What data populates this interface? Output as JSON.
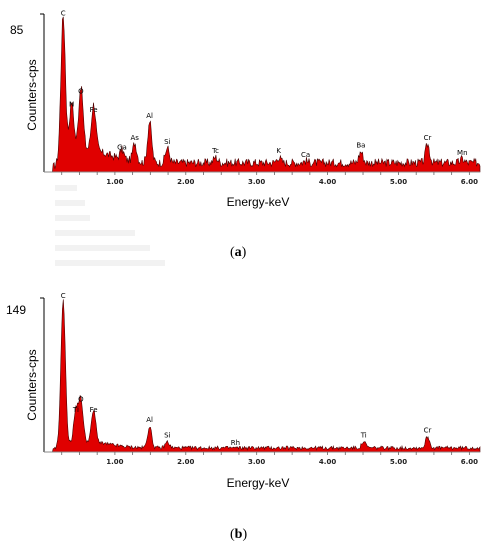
{
  "colors": {
    "spectrum_fill": "#e00000",
    "spectrum_stroke": "#4a0000",
    "axis": "#000000"
  },
  "chart_data": [
    {
      "type": "area",
      "caption": "a",
      "xlabel": "Energy-keV",
      "ylabel": "Counters-cps",
      "ymax_label": "85",
      "xlim": [
        0,
        6.15
      ],
      "ylim": [
        0,
        85
      ],
      "xticks": [
        "1.00",
        "2.00",
        "3.00",
        "4.00",
        "5.00",
        "6.00"
      ],
      "tick_values": [
        1,
        2,
        3,
        4,
        5,
        6
      ],
      "peaks": [
        {
          "label": "C",
          "x": 0.27,
          "y": 82
        },
        {
          "label": "N",
          "x": 0.39,
          "y": 33
        },
        {
          "label": "O",
          "x": 0.52,
          "y": 40
        },
        {
          "label": "Fe",
          "x": 0.7,
          "y": 30
        },
        {
          "label": "Ga",
          "x": 1.1,
          "y": 10
        },
        {
          "label": "As",
          "x": 1.28,
          "y": 15
        },
        {
          "label": "Al",
          "x": 1.49,
          "y": 27
        },
        {
          "label": "Si",
          "x": 1.74,
          "y": 13
        },
        {
          "label": "Tc",
          "x": 2.42,
          "y": 8
        },
        {
          "label": "K",
          "x": 3.31,
          "y": 8
        },
        {
          "label": "Ca",
          "x": 3.69,
          "y": 6
        },
        {
          "label": "Ba",
          "x": 4.47,
          "y": 11
        },
        {
          "label": "Cr",
          "x": 5.41,
          "y": 15
        },
        {
          "label": "Mn",
          "x": 5.9,
          "y": 7
        }
      ],
      "baseline": 5
    },
    {
      "type": "area",
      "caption": "b",
      "xlabel": "Energy-keV",
      "ylabel": "Counters-cps",
      "ymax_label": "149",
      "xlim": [
        0,
        6.15
      ],
      "ylim": [
        0,
        149
      ],
      "xticks": [
        "1.00",
        "2.00",
        "3.00",
        "4.00",
        "5.00",
        "6.00"
      ],
      "tick_values": [
        1,
        2,
        3,
        4,
        5,
        6
      ],
      "peaks": [
        {
          "label": "C",
          "x": 0.27,
          "y": 145
        },
        {
          "label": "O",
          "x": 0.52,
          "y": 45
        },
        {
          "label": "Ti",
          "x": 0.45,
          "y": 35
        },
        {
          "label": "Fe",
          "x": 0.7,
          "y": 35
        },
        {
          "label": "Al",
          "x": 1.49,
          "y": 25
        },
        {
          "label": "Si",
          "x": 1.74,
          "y": 10
        },
        {
          "label": "Rh",
          "x": 2.7,
          "y": 3
        },
        {
          "label": "Ti",
          "x": 4.51,
          "y": 10
        },
        {
          "label": "Cr",
          "x": 5.41,
          "y": 15
        }
      ],
      "baseline": 4
    }
  ]
}
